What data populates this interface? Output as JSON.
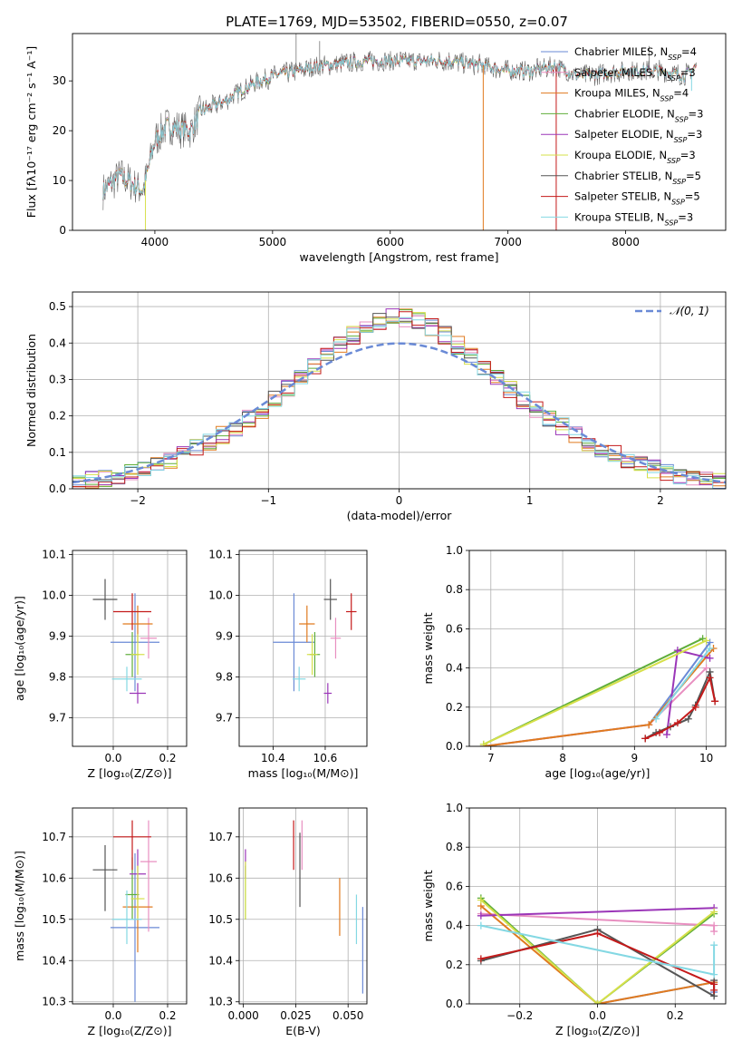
{
  "figure_title": "PLATE=1769, MJD=53502, FIBERID=0550, z=0.07",
  "colors": {
    "chabrier_miles": "#6a8ad6",
    "salpeter_miles": "#e88fc0",
    "kroupa_miles": "#e07a1f",
    "chabrier_elodie": "#5fae3a",
    "salpeter_elodie": "#9b36b8",
    "kroupa_elodie": "#d6e04a",
    "chabrier_stelib": "#555555",
    "salpeter_stelib": "#c41a1a",
    "kroupa_stelib": "#84d8e3",
    "gauss": "#6a8ad6"
  },
  "chart_data": [
    {
      "id": "spectrum",
      "type": "line",
      "xlabel": "wavelength [Angstrom, rest frame]",
      "ylabel": "Flux [fλ10⁻¹⁷ erg cm⁻² s⁻¹ A⁻¹]",
      "xlim": [
        3300,
        8850
      ],
      "ylim": [
        0,
        39.5
      ],
      "xticks": [
        4000,
        5000,
        6000,
        7000,
        8000
      ],
      "yticks": [
        0,
        10,
        20,
        30
      ],
      "grid": false,
      "legend_position": "top-right",
      "legend": [
        {
          "label": "Chabrier MILES, N_SSP=4",
          "color_key": "chabrier_miles"
        },
        {
          "label": "Salpeter MILES, N_SSP=3",
          "color_key": "salpeter_miles"
        },
        {
          "label": "Kroupa MILES, N_SSP=4",
          "color_key": "kroupa_miles"
        },
        {
          "label": "Chabrier ELODIE, N_SSP=3",
          "color_key": "chabrier_elodie"
        },
        {
          "label": "Salpeter ELODIE, N_SSP=3",
          "color_key": "salpeter_elodie"
        },
        {
          "label": "Kroupa ELODIE, N_SSP=3",
          "color_key": "kroupa_elodie"
        },
        {
          "label": "Chabrier STELIB, N_SSP=5",
          "color_key": "chabrier_stelib"
        },
        {
          "label": "Salpeter STELIB, N_SSP=5",
          "color_key": "salpeter_stelib"
        },
        {
          "label": "Kroupa STELIB, N_SSP=3",
          "color_key": "kroupa_stelib"
        }
      ],
      "continuum": [
        [
          3560,
          8
        ],
        [
          3700,
          11
        ],
        [
          3900,
          8
        ],
        [
          3950,
          13
        ],
        [
          4000,
          18
        ],
        [
          4100,
          21
        ],
        [
          4300,
          20
        ],
        [
          4400,
          24
        ],
        [
          4600,
          26
        ],
        [
          4800,
          29
        ],
        [
          5000,
          31
        ],
        [
          5200,
          32
        ],
        [
          5400,
          33
        ],
        [
          5600,
          33.5
        ],
        [
          5800,
          34
        ],
        [
          6000,
          34
        ],
        [
          6200,
          34
        ],
        [
          6500,
          34
        ],
        [
          6800,
          33
        ],
        [
          7000,
          32
        ],
        [
          7200,
          32
        ],
        [
          7400,
          33
        ],
        [
          7600,
          31
        ],
        [
          8000,
          32
        ],
        [
          8300,
          32
        ],
        [
          8500,
          31
        ],
        [
          8600,
          33
        ]
      ],
      "spikes_up": [
        [
          5200,
          39.5
        ],
        [
          5400,
          38
        ],
        [
          8200,
          37
        ]
      ],
      "spikes_down": [
        [
          3920,
          0
        ],
        [
          6790,
          0
        ],
        [
          7410,
          0
        ],
        [
          8560,
          28
        ]
      ]
    },
    {
      "id": "residuals",
      "type": "area",
      "xlabel": "(data-model)/error",
      "ylabel": "Normed distribution",
      "xlim": [
        -2.5,
        2.5
      ],
      "ylim": [
        0,
        0.54
      ],
      "xticks": [
        -2,
        -1,
        0,
        1,
        2
      ],
      "yticks": [
        0.0,
        0.1,
        0.2,
        0.3,
        0.4,
        0.5
      ],
      "grid": true,
      "legend": [
        {
          "label": "𝒩(0, 1)",
          "color_key": "gauss"
        }
      ],
      "bin_width": 0.1
    },
    {
      "id": "age_vs_Z",
      "type": "scatter",
      "xlabel": "Z [log₁₀(Z/Z⊙)]",
      "ylabel": "age  [log₁₀(age/yr)]",
      "xlim": [
        -0.15,
        0.27
      ],
      "ylim": [
        9.63,
        10.11
      ],
      "xticks": [
        0.0,
        0.2
      ],
      "yticks": [
        9.7,
        9.8,
        9.9,
        10.0,
        10.1
      ],
      "grid": true
    },
    {
      "id": "age_vs_mass",
      "type": "scatter",
      "xlabel": "mass [log₁₀(M/M⊙)]",
      "ylabel": "",
      "xlim": [
        10.27,
        10.76
      ],
      "ylim": [
        9.63,
        10.11
      ],
      "xticks": [
        10.4,
        10.6
      ],
      "yticks": [
        9.7,
        9.8,
        9.9,
        10.0,
        10.1
      ],
      "grid": true
    },
    {
      "id": "massweight_vs_age",
      "type": "line",
      "xlabel": "age  [log₁₀(age/yr)]",
      "ylabel": "mass weight",
      "xlim": [
        6.7,
        10.27
      ],
      "ylim": [
        0,
        1
      ],
      "xticks": [
        7,
        8,
        9,
        10
      ],
      "yticks": [
        0.0,
        0.2,
        0.4,
        0.6,
        0.8,
        1.0
      ],
      "grid": true
    },
    {
      "id": "mass_vs_Z",
      "type": "scatter",
      "xlabel": "Z [log₁₀(Z/Z⊙)]",
      "ylabel": "mass [log₁₀(M/M⊙)]",
      "xlim": [
        -0.15,
        0.27
      ],
      "ylim": [
        10.295,
        10.77
      ],
      "xticks": [
        0.0,
        0.2
      ],
      "yticks": [
        10.3,
        10.4,
        10.5,
        10.6,
        10.7
      ],
      "grid": true
    },
    {
      "id": "mass_vs_EBV",
      "type": "scatter",
      "xlabel": "E(B-V)",
      "ylabel": "",
      "xlim": [
        -0.002,
        0.059
      ],
      "ylim": [
        10.295,
        10.77
      ],
      "xticks": [
        0.0,
        0.025,
        0.05
      ],
      "xticklabels": [
        "0.000",
        "0.025",
        "0.050"
      ],
      "yticks": [
        10.3,
        10.4,
        10.5,
        10.6,
        10.7
      ],
      "grid": true
    },
    {
      "id": "massweight_vs_Z",
      "type": "line",
      "xlabel": "Z [log₁₀(Z/Z⊙)]",
      "ylabel": "mass weight",
      "xlim": [
        -0.33,
        0.33
      ],
      "ylim": [
        0,
        1
      ],
      "xticks": [
        -0.2,
        0.0,
        0.2
      ],
      "yticks": [
        0.0,
        0.2,
        0.4,
        0.6,
        0.8,
        1.0
      ],
      "grid": true
    }
  ],
  "fits": [
    {
      "key": "chabrier_miles",
      "Z": 0.08,
      "Zerr": 0.18,
      "age": 9.885,
      "ageerr": 0.24,
      "mass": 10.48,
      "masserr": 0.16,
      "mlo": 10.3,
      "mhi": 10.66,
      "ebv": 0.057,
      "ebv_lo": 10.32,
      "ebv_hi": 10.53
    },
    {
      "key": "salpeter_miles",
      "Z": 0.13,
      "Zerr": 0.06,
      "age": 9.895,
      "ageerr": 0.1,
      "mass": 10.64,
      "masserr": 0.04,
      "mlo": 10.47,
      "mhi": 10.74,
      "ebv": 0.028,
      "ebv_lo": 10.62,
      "ebv_hi": 10.74
    },
    {
      "key": "kroupa_miles",
      "Z": 0.09,
      "Zerr": 0.11,
      "age": 9.93,
      "ageerr": 0.09,
      "mass": 10.53,
      "masserr": 0.06,
      "mlo": 10.42,
      "mhi": 10.6,
      "ebv": 0.046,
      "ebv_lo": 10.46,
      "ebv_hi": 10.6
    },
    {
      "key": "chabrier_elodie",
      "Z": 0.07,
      "Zerr": 0.05,
      "age": 9.855,
      "ageerr": 0.11,
      "mass": 10.56,
      "masserr": 0.04,
      "mlo": 10.5,
      "mhi": 10.65,
      "ebv": 0.001,
      "ebv_lo": 10.5,
      "ebv_hi": 10.63
    },
    {
      "key": "salpeter_elodie",
      "Z": 0.09,
      "Zerr": 0.06,
      "age": 9.76,
      "ageerr": 0.05,
      "mass": 10.61,
      "masserr": 0.03,
      "mlo": 10.55,
      "mhi": 10.67,
      "ebv": 0.001,
      "ebv_lo": 10.6,
      "ebv_hi": 10.67
    },
    {
      "key": "kroupa_elodie",
      "Z": 0.09,
      "Zerr": 0.05,
      "age": 9.855,
      "ageerr": 0.1,
      "mass": 10.55,
      "masserr": 0.04,
      "mlo": 10.5,
      "mhi": 10.63,
      "ebv": 0.001,
      "ebv_lo": 10.5,
      "ebv_hi": 10.64
    },
    {
      "key": "chabrier_stelib",
      "Z": -0.03,
      "Zerr": 0.09,
      "age": 9.99,
      "ageerr": 0.1,
      "mass": 10.62,
      "masserr": 0.05,
      "mlo": 10.52,
      "mhi": 10.68,
      "ebv": 0.027,
      "ebv_lo": 10.53,
      "ebv_hi": 10.71
    },
    {
      "key": "salpeter_stelib",
      "Z": 0.07,
      "Zerr": 0.14,
      "age": 9.96,
      "ageerr": 0.09,
      "mass": 10.7,
      "masserr": 0.04,
      "mlo": 10.62,
      "mhi": 10.74,
      "ebv": 0.024,
      "ebv_lo": 10.62,
      "ebv_hi": 10.74
    },
    {
      "key": "kroupa_stelib",
      "Z": 0.05,
      "Zerr": 0.11,
      "age": 9.795,
      "ageerr": 0.06,
      "mass": 10.5,
      "masserr": 0.05,
      "mlo": 10.44,
      "mhi": 10.57,
      "ebv": 0.054,
      "ebv_lo": 10.44,
      "ebv_hi": 10.56
    }
  ],
  "weights_age": [
    {
      "key": "chabrier_miles",
      "pts": [
        [
          6.9,
          0.0
        ],
        [
          9.2,
          0.11
        ],
        [
          10.05,
          0.53
        ]
      ]
    },
    {
      "key": "salpeter_miles",
      "pts": [
        [
          6.9,
          0.0
        ],
        [
          9.2,
          0.11
        ],
        [
          10.0,
          0.4
        ]
      ]
    },
    {
      "key": "kroupa_miles",
      "pts": [
        [
          6.9,
          0.0
        ],
        [
          9.2,
          0.11
        ],
        [
          10.1,
          0.5
        ]
      ]
    },
    {
      "key": "chabrier_elodie",
      "pts": [
        [
          6.9,
          0.01
        ],
        [
          9.95,
          0.55
        ]
      ]
    },
    {
      "key": "salpeter_elodie",
      "pts": [
        [
          9.45,
          0.06
        ],
        [
          9.6,
          0.49
        ],
        [
          10.05,
          0.45
        ]
      ]
    },
    {
      "key": "kroupa_elodie",
      "pts": [
        [
          6.9,
          0.01
        ],
        [
          10.0,
          0.54
        ]
      ]
    },
    {
      "key": "chabrier_stelib",
      "pts": [
        [
          9.15,
          0.04
        ],
        [
          9.3,
          0.07
        ],
        [
          9.5,
          0.1
        ],
        [
          9.75,
          0.14
        ],
        [
          9.85,
          0.21
        ],
        [
          10.05,
          0.38
        ],
        [
          10.12,
          0.23
        ]
      ]
    },
    {
      "key": "salpeter_stelib",
      "pts": [
        [
          9.15,
          0.04
        ],
        [
          9.35,
          0.07
        ],
        [
          9.6,
          0.12
        ],
        [
          9.85,
          0.2
        ],
        [
          10.05,
          0.35
        ],
        [
          10.12,
          0.23
        ]
      ]
    },
    {
      "key": "kroupa_stelib",
      "pts": [
        [
          9.3,
          0.14
        ],
        [
          10.05,
          0.5
        ]
      ]
    }
  ],
  "weights_Z": [
    {
      "key": "chabrier_miles",
      "pts": [
        [
          0.0,
          0.0
        ],
        [
          0.3,
          0.11
        ],
        [
          0.3,
          0.06
        ]
      ]
    },
    {
      "key": "salpeter_miles",
      "pts": [
        [
          -0.3,
          0.46
        ],
        [
          0.3,
          0.4
        ],
        [
          0.3,
          0.37
        ]
      ]
    },
    {
      "key": "kroupa_miles",
      "pts": [
        [
          -0.3,
          0.5
        ],
        [
          0.0,
          0.0
        ],
        [
          0.3,
          0.11
        ]
      ]
    },
    {
      "key": "chabrier_elodie",
      "pts": [
        [
          -0.3,
          0.54
        ],
        [
          0.0,
          0.0
        ],
        [
          0.3,
          0.46
        ]
      ]
    },
    {
      "key": "salpeter_elodie",
      "pts": [
        [
          -0.3,
          0.45
        ],
        [
          0.3,
          0.49
        ]
      ]
    },
    {
      "key": "kroupa_elodie",
      "pts": [
        [
          -0.3,
          0.53
        ],
        [
          0.0,
          0.0
        ],
        [
          0.3,
          0.47
        ]
      ]
    },
    {
      "key": "chabrier_stelib",
      "pts": [
        [
          -0.3,
          0.22
        ],
        [
          0.0,
          0.38
        ],
        [
          0.3,
          0.04
        ],
        [
          0.3,
          0.12
        ]
      ]
    },
    {
      "key": "salpeter_stelib",
      "pts": [
        [
          -0.3,
          0.23
        ],
        [
          0.0,
          0.36
        ],
        [
          0.3,
          0.1
        ],
        [
          0.3,
          0.07
        ]
      ]
    },
    {
      "key": "kroupa_stelib",
      "pts": [
        [
          -0.3,
          0.4
        ],
        [
          0.3,
          0.15
        ],
        [
          0.3,
          0.3
        ]
      ]
    }
  ]
}
